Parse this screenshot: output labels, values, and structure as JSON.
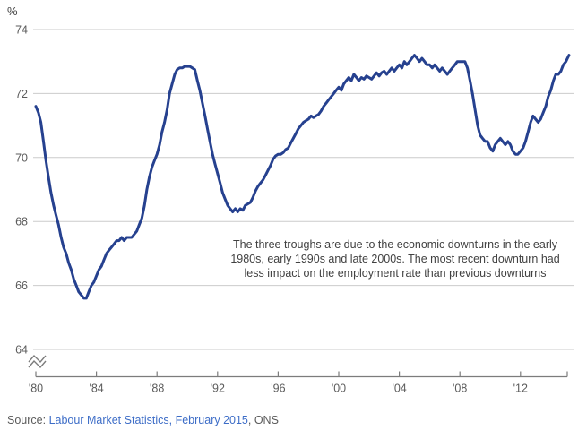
{
  "colors": {
    "line": "#26418f",
    "gridline": "#cbcbcb",
    "axis_line": "#7c7c7c",
    "axis_label": "#5b5b5b",
    "unit_label": "#3f3f3f",
    "annotation_text": "#414141",
    "source_text": "#5b5b5b",
    "source_link": "#3d6dc7",
    "background": "#ffffff"
  },
  "chart_data": {
    "type": "line",
    "title": "",
    "unit_label": "%",
    "grid": true,
    "legend": "none",
    "y_axis": {
      "ticks": [
        64,
        66,
        68,
        70,
        72,
        74
      ],
      "range_shown": [
        64,
        74
      ],
      "axis_break_below": 64
    },
    "x_axis": {
      "range": [
        1980,
        2015.2
      ],
      "ticks": [
        {
          "year": 1980,
          "label": "'80"
        },
        {
          "year": 1984,
          "label": "'84"
        },
        {
          "year": 1988,
          "label": "'88"
        },
        {
          "year": 1992,
          "label": "'92"
        },
        {
          "year": 1996,
          "label": "'96"
        },
        {
          "year": 2000,
          "label": "'00"
        },
        {
          "year": 2004,
          "label": "'04"
        },
        {
          "year": 2008,
          "label": "'08"
        },
        {
          "year": 2012,
          "label": "'12"
        }
      ]
    },
    "annotation": {
      "lines": [
        "The three troughs are due to the economic downturns in the early",
        "1980s, early 1990s and late 2000s. The most recent downturn had",
        "less impact on the employment rate than previous downturns"
      ]
    },
    "series": [
      {
        "color": "#26418f",
        "points": [
          [
            1980.0,
            71.6
          ],
          [
            1980.17,
            71.4
          ],
          [
            1980.33,
            71.1
          ],
          [
            1980.5,
            70.5
          ],
          [
            1980.67,
            69.9
          ],
          [
            1980.83,
            69.4
          ],
          [
            1981.0,
            68.9
          ],
          [
            1981.17,
            68.5
          ],
          [
            1981.33,
            68.2
          ],
          [
            1981.5,
            67.9
          ],
          [
            1981.67,
            67.5
          ],
          [
            1981.83,
            67.2
          ],
          [
            1982.0,
            67.0
          ],
          [
            1982.17,
            66.7
          ],
          [
            1982.33,
            66.5
          ],
          [
            1982.5,
            66.2
          ],
          [
            1982.67,
            66.0
          ],
          [
            1982.83,
            65.8
          ],
          [
            1983.0,
            65.7
          ],
          [
            1983.17,
            65.6
          ],
          [
            1983.33,
            65.6
          ],
          [
            1983.5,
            65.8
          ],
          [
            1983.67,
            66.0
          ],
          [
            1983.83,
            66.1
          ],
          [
            1984.0,
            66.3
          ],
          [
            1984.17,
            66.5
          ],
          [
            1984.33,
            66.6
          ],
          [
            1984.5,
            66.8
          ],
          [
            1984.67,
            67.0
          ],
          [
            1984.83,
            67.1
          ],
          [
            1985.0,
            67.2
          ],
          [
            1985.17,
            67.3
          ],
          [
            1985.33,
            67.4
          ],
          [
            1985.5,
            67.4
          ],
          [
            1985.67,
            67.5
          ],
          [
            1985.83,
            67.4
          ],
          [
            1986.0,
            67.5
          ],
          [
            1986.17,
            67.5
          ],
          [
            1986.33,
            67.5
          ],
          [
            1986.5,
            67.6
          ],
          [
            1986.67,
            67.7
          ],
          [
            1986.83,
            67.9
          ],
          [
            1987.0,
            68.1
          ],
          [
            1987.17,
            68.5
          ],
          [
            1987.33,
            69.0
          ],
          [
            1987.5,
            69.4
          ],
          [
            1987.67,
            69.7
          ],
          [
            1987.83,
            69.9
          ],
          [
            1988.0,
            70.1
          ],
          [
            1988.17,
            70.4
          ],
          [
            1988.33,
            70.8
          ],
          [
            1988.5,
            71.1
          ],
          [
            1988.67,
            71.5
          ],
          [
            1988.83,
            72.0
          ],
          [
            1989.0,
            72.3
          ],
          [
            1989.17,
            72.6
          ],
          [
            1989.33,
            72.75
          ],
          [
            1989.5,
            72.8
          ],
          [
            1989.67,
            72.8
          ],
          [
            1989.83,
            72.85
          ],
          [
            1990.0,
            72.85
          ],
          [
            1990.17,
            72.85
          ],
          [
            1990.33,
            72.8
          ],
          [
            1990.5,
            72.75
          ],
          [
            1990.67,
            72.4
          ],
          [
            1990.83,
            72.1
          ],
          [
            1991.0,
            71.7
          ],
          [
            1991.17,
            71.3
          ],
          [
            1991.33,
            70.9
          ],
          [
            1991.5,
            70.5
          ],
          [
            1991.67,
            70.1
          ],
          [
            1991.83,
            69.8
          ],
          [
            1992.0,
            69.5
          ],
          [
            1992.17,
            69.2
          ],
          [
            1992.33,
            68.9
          ],
          [
            1992.5,
            68.7
          ],
          [
            1992.67,
            68.5
          ],
          [
            1992.83,
            68.4
          ],
          [
            1993.0,
            68.3
          ],
          [
            1993.17,
            68.4
          ],
          [
            1993.33,
            68.3
          ],
          [
            1993.5,
            68.4
          ],
          [
            1993.67,
            68.35
          ],
          [
            1993.83,
            68.5
          ],
          [
            1994.0,
            68.55
          ],
          [
            1994.17,
            68.6
          ],
          [
            1994.33,
            68.75
          ],
          [
            1994.5,
            68.95
          ],
          [
            1994.67,
            69.1
          ],
          [
            1994.83,
            69.2
          ],
          [
            1995.0,
            69.3
          ],
          [
            1995.17,
            69.45
          ],
          [
            1995.33,
            69.6
          ],
          [
            1995.5,
            69.75
          ],
          [
            1995.67,
            69.95
          ],
          [
            1995.83,
            70.05
          ],
          [
            1996.0,
            70.1
          ],
          [
            1996.17,
            70.1
          ],
          [
            1996.33,
            70.15
          ],
          [
            1996.5,
            70.25
          ],
          [
            1996.67,
            70.3
          ],
          [
            1996.83,
            70.45
          ],
          [
            1997.0,
            70.6
          ],
          [
            1997.17,
            70.75
          ],
          [
            1997.33,
            70.9
          ],
          [
            1997.5,
            71.0
          ],
          [
            1997.67,
            71.1
          ],
          [
            1997.83,
            71.15
          ],
          [
            1998.0,
            71.2
          ],
          [
            1998.17,
            71.3
          ],
          [
            1998.33,
            71.25
          ],
          [
            1998.5,
            71.3
          ],
          [
            1998.67,
            71.35
          ],
          [
            1998.83,
            71.45
          ],
          [
            1999.0,
            71.6
          ],
          [
            1999.17,
            71.7
          ],
          [
            1999.33,
            71.8
          ],
          [
            1999.5,
            71.9
          ],
          [
            1999.67,
            72.0
          ],
          [
            1999.83,
            72.1
          ],
          [
            2000.0,
            72.2
          ],
          [
            2000.17,
            72.1
          ],
          [
            2000.33,
            72.3
          ],
          [
            2000.5,
            72.4
          ],
          [
            2000.67,
            72.5
          ],
          [
            2000.83,
            72.4
          ],
          [
            2001.0,
            72.6
          ],
          [
            2001.17,
            72.5
          ],
          [
            2001.33,
            72.4
          ],
          [
            2001.5,
            72.5
          ],
          [
            2001.67,
            72.45
          ],
          [
            2001.83,
            72.55
          ],
          [
            2002.0,
            72.5
          ],
          [
            2002.17,
            72.45
          ],
          [
            2002.33,
            72.55
          ],
          [
            2002.5,
            72.65
          ],
          [
            2002.67,
            72.55
          ],
          [
            2002.83,
            72.65
          ],
          [
            2003.0,
            72.7
          ],
          [
            2003.17,
            72.6
          ],
          [
            2003.33,
            72.7
          ],
          [
            2003.5,
            72.8
          ],
          [
            2003.67,
            72.7
          ],
          [
            2003.83,
            72.8
          ],
          [
            2004.0,
            72.9
          ],
          [
            2004.17,
            72.8
          ],
          [
            2004.33,
            73.0
          ],
          [
            2004.5,
            72.9
          ],
          [
            2004.67,
            73.0
          ],
          [
            2004.83,
            73.1
          ],
          [
            2005.0,
            73.2
          ],
          [
            2005.17,
            73.1
          ],
          [
            2005.33,
            73.0
          ],
          [
            2005.5,
            73.1
          ],
          [
            2005.67,
            73.0
          ],
          [
            2005.83,
            72.9
          ],
          [
            2006.0,
            72.9
          ],
          [
            2006.17,
            72.8
          ],
          [
            2006.33,
            72.9
          ],
          [
            2006.5,
            72.8
          ],
          [
            2006.67,
            72.7
          ],
          [
            2006.83,
            72.8
          ],
          [
            2007.0,
            72.7
          ],
          [
            2007.17,
            72.6
          ],
          [
            2007.33,
            72.7
          ],
          [
            2007.5,
            72.8
          ],
          [
            2007.67,
            72.9
          ],
          [
            2007.83,
            73.0
          ],
          [
            2008.0,
            73.0
          ],
          [
            2008.17,
            73.0
          ],
          [
            2008.33,
            73.0
          ],
          [
            2008.5,
            72.8
          ],
          [
            2008.67,
            72.4
          ],
          [
            2008.83,
            72.0
          ],
          [
            2009.0,
            71.5
          ],
          [
            2009.17,
            71.0
          ],
          [
            2009.33,
            70.7
          ],
          [
            2009.5,
            70.6
          ],
          [
            2009.67,
            70.5
          ],
          [
            2009.83,
            70.5
          ],
          [
            2010.0,
            70.3
          ],
          [
            2010.17,
            70.2
          ],
          [
            2010.33,
            70.4
          ],
          [
            2010.5,
            70.5
          ],
          [
            2010.67,
            70.6
          ],
          [
            2010.83,
            70.5
          ],
          [
            2011.0,
            70.4
          ],
          [
            2011.17,
            70.5
          ],
          [
            2011.33,
            70.4
          ],
          [
            2011.5,
            70.2
          ],
          [
            2011.67,
            70.1
          ],
          [
            2011.83,
            70.1
          ],
          [
            2012.0,
            70.2
          ],
          [
            2012.17,
            70.3
          ],
          [
            2012.33,
            70.5
          ],
          [
            2012.5,
            70.8
          ],
          [
            2012.67,
            71.1
          ],
          [
            2012.83,
            71.3
          ],
          [
            2013.0,
            71.2
          ],
          [
            2013.17,
            71.1
          ],
          [
            2013.33,
            71.2
          ],
          [
            2013.5,
            71.4
          ],
          [
            2013.67,
            71.6
          ],
          [
            2013.83,
            71.9
          ],
          [
            2014.0,
            72.1
          ],
          [
            2014.17,
            72.4
          ],
          [
            2014.33,
            72.6
          ],
          [
            2014.5,
            72.6
          ],
          [
            2014.67,
            72.7
          ],
          [
            2014.83,
            72.9
          ],
          [
            2015.0,
            73.0
          ],
          [
            2015.1,
            73.1
          ],
          [
            2015.2,
            73.2
          ]
        ]
      }
    ]
  },
  "source": {
    "prefix": "Source: ",
    "link_text": "Labour Market Statistics, February 2015",
    "suffix": ", ONS"
  }
}
